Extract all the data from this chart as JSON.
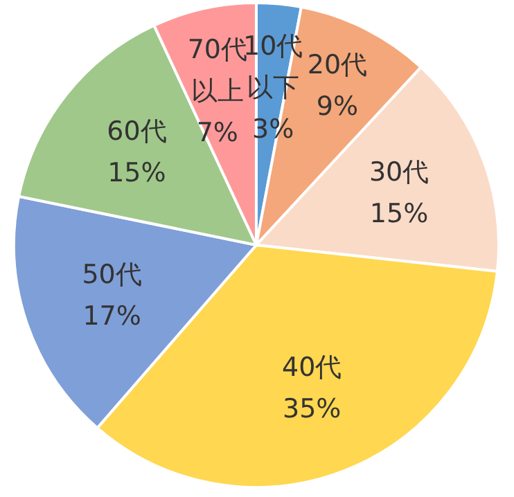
{
  "chart_data": {
    "type": "pie",
    "categories": [
      "10代以下",
      "20代",
      "30代",
      "40代",
      "50代",
      "60代",
      "70代以上"
    ],
    "values": [
      3,
      9,
      15,
      35,
      17,
      15,
      7
    ],
    "value_labels": [
      "3%",
      "9%",
      "15%",
      "35%",
      "17%",
      "15%",
      "7%"
    ],
    "colors": [
      "#5b9bd5",
      "#f4a77a",
      "#fadbc8",
      "#ffd750",
      "#7f9fd8",
      "#a0c88a",
      "#ff9999"
    ]
  }
}
